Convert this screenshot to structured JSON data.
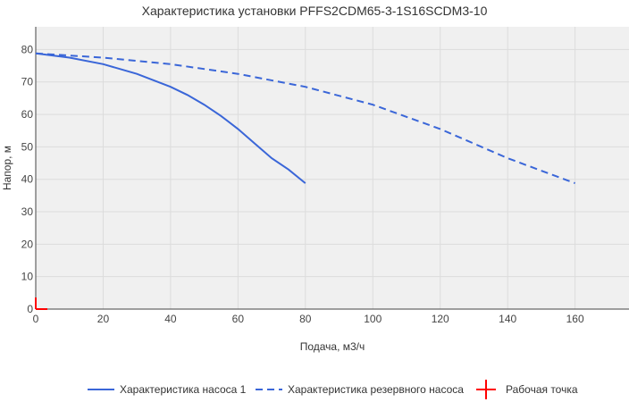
{
  "chart_data": {
    "type": "line",
    "title": "Характеристика установки PFFS2CDM65-3-1S16SCDM3-10",
    "xlabel": "Подача, м3/ч",
    "ylabel": "Напор, м",
    "xlim": [
      0,
      176
    ],
    "ylim": [
      0,
      87
    ],
    "x_ticks": [
      0,
      20,
      40,
      60,
      80,
      100,
      120,
      140,
      160
    ],
    "y_ticks": [
      0,
      10,
      20,
      30,
      40,
      50,
      60,
      70,
      80
    ],
    "grid": true,
    "legend_position": "bottom",
    "colors": {
      "series": "#3a66d8",
      "operating_point": "#ff0000",
      "plot_bg": "#f0f0f0",
      "grid": "#dcdcdc"
    },
    "series": [
      {
        "name": "Характеристика насоса 1",
        "style": "solid",
        "x": [
          0,
          10,
          20,
          30,
          40,
          45,
          50,
          55,
          60,
          65,
          70,
          75,
          80
        ],
        "y": [
          78.8,
          77.5,
          75.5,
          72.5,
          68.5,
          66.0,
          63.0,
          59.5,
          55.5,
          51.0,
          46.5,
          43.0,
          38.8
        ]
      },
      {
        "name": "Характеристика резервного насоса",
        "style": "dashed",
        "x": [
          0,
          20,
          40,
          60,
          80,
          100,
          120,
          140,
          160
        ],
        "y": [
          78.8,
          77.5,
          75.5,
          72.5,
          68.5,
          63.0,
          55.5,
          46.5,
          38.8
        ]
      }
    ],
    "operating_point": {
      "name": "Рабочая точка",
      "x": 0,
      "y": 0
    }
  }
}
